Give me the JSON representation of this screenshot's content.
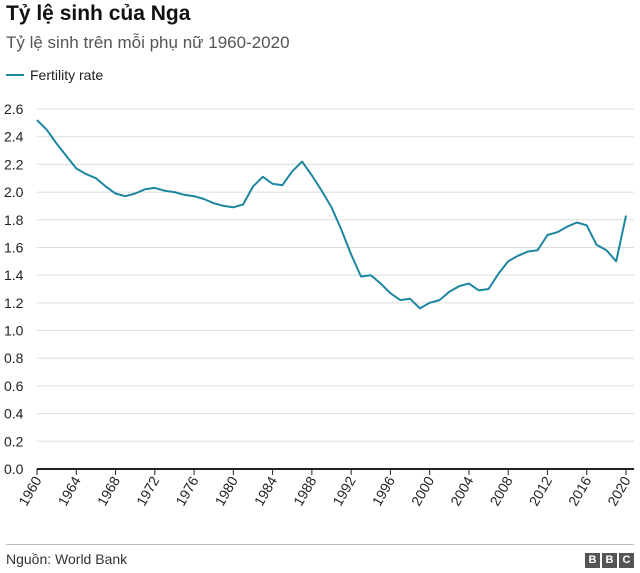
{
  "header": {
    "title": "Tỷ lệ sinh của Nga",
    "subtitle": "Tỷ lệ sinh trên mỗi phụ nữ 1960-2020"
  },
  "footer": {
    "source": "Nguồn: World Bank",
    "logo_letters": [
      "B",
      "B",
      "C"
    ]
  },
  "colors": {
    "line": "#1d86a1",
    "grid": "#dddddd",
    "axis": "#222222"
  },
  "chart_data": {
    "type": "line",
    "title": "Tỷ lệ sinh của Nga",
    "subtitle": "Tỷ lệ sinh trên mỗi phụ nữ 1960-2020",
    "xlabel": "",
    "ylabel": "",
    "xlim": [
      1960,
      2020
    ],
    "ylim": [
      0,
      2.6
    ],
    "grid": true,
    "legend_position": "top-left",
    "x_ticks": [
      "1960",
      "1964",
      "1968",
      "1972",
      "1976",
      "1980",
      "1984",
      "1988",
      "1992",
      "1996",
      "2000",
      "2004",
      "2008",
      "2012",
      "2016",
      "2020"
    ],
    "y_ticks": [
      "0.0",
      "0.2",
      "0.4",
      "0.6",
      "0.8",
      "1.0",
      "1.2",
      "1.4",
      "1.6",
      "1.8",
      "2.0",
      "2.2",
      "2.4",
      "2.6"
    ],
    "x": [
      1960,
      1961,
      1962,
      1963,
      1964,
      1965,
      1966,
      1967,
      1968,
      1969,
      1970,
      1971,
      1972,
      1973,
      1974,
      1975,
      1976,
      1977,
      1978,
      1979,
      1980,
      1981,
      1982,
      1983,
      1984,
      1985,
      1986,
      1987,
      1988,
      1989,
      1990,
      1991,
      1992,
      1993,
      1994,
      1995,
      1996,
      1997,
      1998,
      1999,
      2000,
      2001,
      2002,
      2003,
      2004,
      2005,
      2006,
      2007,
      2008,
      2009,
      2010,
      2011,
      2012,
      2013,
      2014,
      2015,
      2016,
      2017,
      2018,
      2019,
      2020
    ],
    "series": [
      {
        "name": "Fertility rate",
        "values": [
          2.52,
          2.45,
          2.35,
          2.26,
          2.17,
          2.13,
          2.1,
          2.04,
          1.99,
          1.97,
          1.99,
          2.02,
          2.03,
          2.01,
          2.0,
          1.98,
          1.97,
          1.95,
          1.92,
          1.9,
          1.89,
          1.91,
          2.04,
          2.11,
          2.06,
          2.05,
          2.15,
          2.22,
          2.12,
          2.01,
          1.89,
          1.73,
          1.55,
          1.39,
          1.4,
          1.34,
          1.27,
          1.22,
          1.23,
          1.16,
          1.2,
          1.22,
          1.28,
          1.32,
          1.34,
          1.29,
          1.3,
          1.41,
          1.5,
          1.54,
          1.57,
          1.58,
          1.69,
          1.71,
          1.75,
          1.78,
          1.76,
          1.62,
          1.58,
          1.5,
          1.83
        ]
      }
    ]
  }
}
